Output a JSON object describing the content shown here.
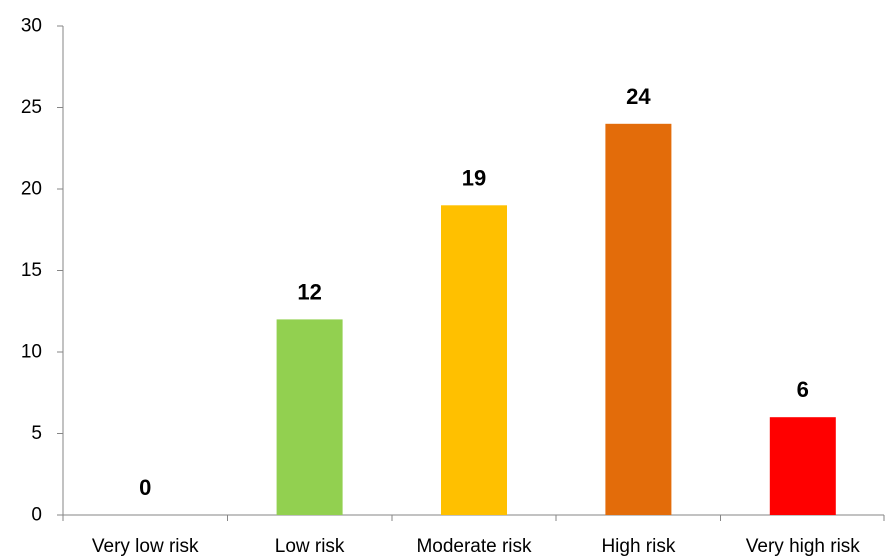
{
  "chart_data": {
    "type": "bar",
    "title": "",
    "xlabel": "",
    "ylabel": "",
    "categories": [
      "Very low risk",
      "Low risk",
      "Moderate risk",
      "High risk",
      "Very high risk"
    ],
    "values": [
      0,
      12,
      19,
      24,
      6
    ],
    "data_labels": [
      "0",
      "12",
      "19",
      "24",
      "6"
    ],
    "colors": [
      "#92D050",
      "#92D050",
      "#FFC000",
      "#E36C0A",
      "#FF0000"
    ],
    "ylim": [
      0,
      30
    ],
    "yticks": [
      0,
      5,
      10,
      15,
      20,
      25,
      30
    ],
    "ytick_labels": [
      "0",
      "5",
      "10",
      "15",
      "20",
      "25",
      "30"
    ],
    "grid": false,
    "legend": "none"
  }
}
